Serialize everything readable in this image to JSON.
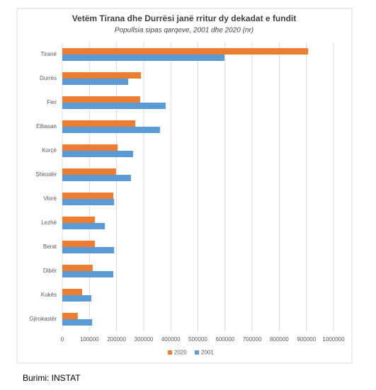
{
  "chart_data": {
    "type": "bar",
    "orientation": "horizontal",
    "title": "Vetëm Tirana dhe Durrësi janë rritur dy dekadat e fundit",
    "subtitle": "Popullsia sipas qarqeve, 2001 dhe 2020 (nr)",
    "categories": [
      "Tiranë",
      "Durrës",
      "Fier",
      "Elbasan",
      "Korçë",
      "Shkodër",
      "Vlorë",
      "Lezhë",
      "Berat",
      "Dibër",
      "Kukës",
      "Gjirokastër"
    ],
    "series": [
      {
        "name": "2020",
        "color": "#ed7d31",
        "values": [
          906000,
          290000,
          287000,
          269000,
          204000,
          198000,
          188000,
          120000,
          120000,
          112000,
          73000,
          57000
        ]
      },
      {
        "name": "2001",
        "color": "#5b9bd5",
        "values": [
          598000,
          243000,
          381000,
          360000,
          261000,
          253000,
          191000,
          157000,
          191000,
          188000,
          107000,
          110000
        ]
      }
    ],
    "xlim": [
      0,
      1000000
    ],
    "xticks": [
      0,
      100000,
      200000,
      300000,
      400000,
      500000,
      600000,
      700000,
      800000,
      900000,
      1000000
    ],
    "grid": true,
    "legend": "bottom"
  },
  "source": "Burimi: INSTAT"
}
